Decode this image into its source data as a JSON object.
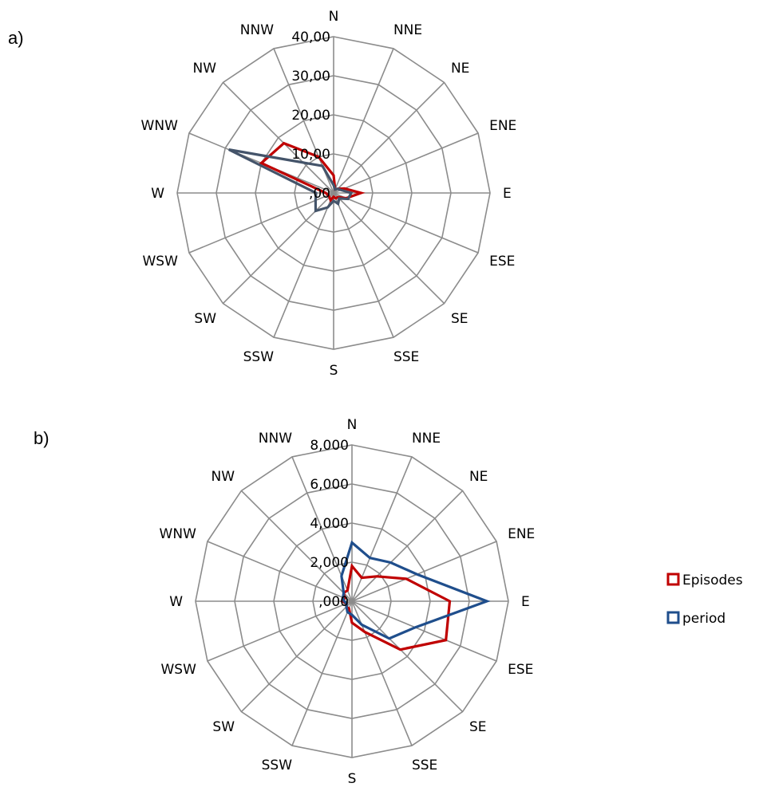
{
  "chart_data": [
    {
      "type": "radar",
      "panel_label": "a)",
      "directions": [
        "N",
        "NNE",
        "NE",
        "ENE",
        "E",
        "ESE",
        "SE",
        "SSE",
        "S",
        "SSW",
        "SW",
        "WSW",
        "W",
        "WNW",
        "NW",
        "NNW"
      ],
      "tick_labels": [
        ",00",
        "10,00",
        "20,00",
        "30,00",
        "40,00"
      ],
      "rlim": [
        0,
        40
      ],
      "grid": true,
      "series": [
        {
          "name": "Episodes",
          "color": "#c00000",
          "values": [
            4.5,
            1.0,
            1.5,
            3.0,
            7.0,
            3.5,
            1.5,
            1.5,
            1.0,
            2.0,
            1.5,
            1.5,
            2.0,
            20.0,
            18.0,
            10.0
          ]
        },
        {
          "name": "period",
          "color": "#44546a",
          "values": [
            2.0,
            1.0,
            1.5,
            2.0,
            4.5,
            4.0,
            2.0,
            3.0,
            2.0,
            4.0,
            6.5,
            5.0,
            4.5,
            29.0,
            11.0,
            7.5
          ]
        }
      ]
    },
    {
      "type": "radar",
      "panel_label": "b)",
      "directions": [
        "N",
        "NNE",
        "NE",
        "ENE",
        "E",
        "ESE",
        "SE",
        "SSE",
        "S",
        "SSW",
        "SW",
        "WSW",
        "W",
        "WNW",
        "NW",
        "NNW"
      ],
      "tick_labels": [
        ",000",
        "2,000",
        "4,000",
        "6,000",
        "8,000"
      ],
      "rlim": [
        0,
        8
      ],
      "grid": true,
      "legend": {
        "position": "right"
      },
      "series": [
        {
          "name": "Episodes",
          "color": "#c00000",
          "values": [
            1.8,
            1.3,
            1.8,
            3.0,
            5.0,
            5.2,
            3.5,
            1.7,
            1.1,
            0.4,
            0.4,
            0.3,
            0.5,
            0.4,
            0.6,
            0.6
          ]
        },
        {
          "name": "period",
          "color": "#1f4e8c",
          "values": [
            3.0,
            2.4,
            2.8,
            3.6,
            6.9,
            3.5,
            2.7,
            1.3,
            0.7,
            0.6,
            0.4,
            0.3,
            0.4,
            0.5,
            0.6,
            1.4
          ]
        }
      ]
    }
  ],
  "legend": {
    "items": [
      {
        "name": "Episodes",
        "color": "#c00000"
      },
      {
        "name": "period",
        "color": "#1f4e8c"
      }
    ]
  }
}
